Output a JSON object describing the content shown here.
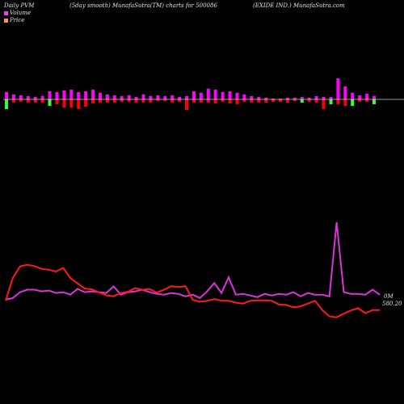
{
  "header": {
    "left": "Daily PVM",
    "center": "(5day smooth) MunafaSutra(TM) charts for 500086",
    "right": "(EXIDE IND.) MunafaSutra.com"
  },
  "legend": {
    "items": [
      {
        "label": "Volume",
        "color": "#ff33ff"
      },
      {
        "label": "Price",
        "color": "#ff9933"
      }
    ]
  },
  "colors": {
    "background": "#000000",
    "bar_up": "#ff00ff",
    "bar_down": "#ff0000",
    "bar_green": "#33ff33",
    "volume_line": "#dd33dd",
    "price_line": "#ff1a1a",
    "baseline": "#cccccc"
  },
  "chart_data": {
    "type": "line",
    "panels": [
      "volume-bars",
      "volume-and-price-lines"
    ],
    "bars": {
      "up": [
        9,
        6,
        5,
        4,
        3,
        4,
        10,
        9,
        11,
        12,
        9,
        10,
        12,
        8,
        6,
        5,
        4,
        5,
        3,
        6,
        4,
        5,
        4,
        5,
        3,
        4,
        10,
        8,
        13,
        12,
        9,
        10,
        8,
        6,
        4,
        3,
        2,
        1,
        1,
        2,
        2,
        3,
        2,
        4,
        3,
        3,
        26,
        16,
        8,
        5,
        7,
        4
      ],
      "down": [
        0,
        4,
        3,
        4,
        4,
        4,
        3,
        6,
        10,
        10,
        12,
        9,
        5,
        4,
        4,
        4,
        3,
        3,
        4,
        4,
        4,
        2,
        2,
        4,
        3,
        13,
        4,
        4,
        4,
        5,
        3,
        5,
        6,
        3,
        4,
        4,
        4,
        3,
        3,
        4,
        2,
        3,
        3,
        4,
        12,
        8,
        6,
        8,
        5,
        3,
        3,
        2
      ],
      "green_down": [
        12,
        0,
        0,
        0,
        0,
        0,
        8,
        0,
        0,
        0,
        0,
        0,
        0,
        0,
        0,
        0,
        0,
        0,
        0,
        0,
        0,
        0,
        0,
        0,
        0,
        0,
        0,
        0,
        0,
        0,
        0,
        0,
        0,
        0,
        0,
        0,
        0,
        0,
        0,
        0,
        0,
        4,
        0,
        0,
        0,
        6,
        0,
        0,
        8,
        0,
        0,
        6
      ]
    },
    "series": [
      {
        "name": "Volume",
        "values": [
          4,
          6,
          13,
          16,
          16,
          14,
          15,
          12,
          13,
          10,
          17,
          13,
          14,
          13,
          12,
          20,
          10,
          13,
          14,
          16,
          13,
          11,
          10,
          12,
          11,
          8,
          10,
          6,
          14,
          24,
          12,
          31,
          10,
          11,
          9,
          7,
          11,
          9,
          11,
          10,
          13,
          8,
          12,
          10,
          10,
          8,
          97,
          13,
          11,
          11,
          10,
          16,
          10
        ]
      },
      {
        "name": "Price",
        "values": [
          580.2,
          630,
          655,
          659,
          656,
          650,
          648,
          644,
          652,
          630,
          618,
          607,
          605,
          598,
          592,
          590,
          597,
          600,
          608,
          604,
          606,
          598,
          604,
          612,
          610,
          612,
          582,
          578,
          580,
          584,
          580,
          580,
          576,
          574,
          580,
          581,
          581,
          580,
          572,
          571,
          566,
          568,
          574,
          580,
          560,
          546,
          544,
          552,
          559,
          564,
          553,
          560,
          560
        ]
      }
    ],
    "end_labels": {
      "volume": "0M",
      "price": "580.20"
    }
  }
}
